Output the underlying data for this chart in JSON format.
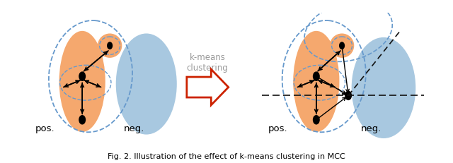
{
  "fig_width": 6.4,
  "fig_height": 2.32,
  "dpi": 100,
  "bg_color": "#ffffff",
  "orange_color": "#F5A86E",
  "blue_color": "#A8C8E0",
  "dashed_blue": "#6699CC",
  "blk": "#111111",
  "red_col": "#CC2200",
  "caption": "Fig. 2. Illustration of the effect of k-means clustering in MCC",
  "kmeans_text": "k-means\nclustering",
  "label_pos_left": "pos.",
  "label_neg_left": "neg.",
  "label_pos_right": "pos.",
  "label_neg_right": "neg."
}
